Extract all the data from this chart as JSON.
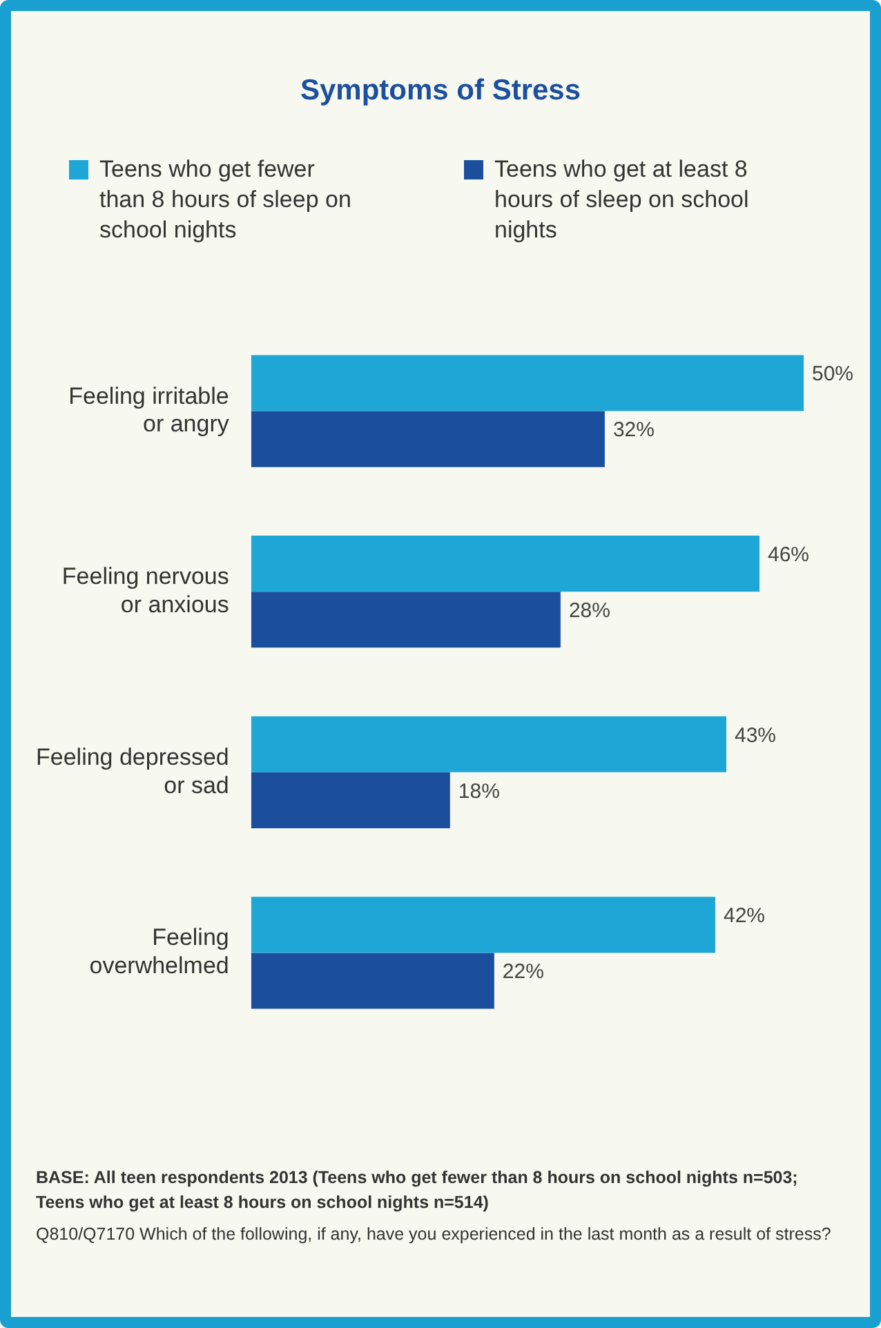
{
  "chart_data": {
    "type": "bar",
    "orientation": "horizontal",
    "title": "Symptoms of Stress",
    "categories": [
      "Feeling irritable or angry",
      "Feeling nervous or anxious",
      "Feeling depressed or sad",
      "Feeling overwhelmed"
    ],
    "series": [
      {
        "name": "Teens who get fewer than 8 hours of sleep on school nights",
        "color": "#1ea6d6",
        "values": [
          50,
          46,
          43,
          42
        ],
        "value_labels": [
          "50%",
          "46%",
          "43%",
          "42%"
        ]
      },
      {
        "name": "Teens who get at least 8 hours of sleep on school nights",
        "color": "#1b4f9e",
        "values": [
          32,
          28,
          18,
          22
        ],
        "value_labels": [
          "32%",
          "28%",
          "18%",
          "22%"
        ]
      }
    ],
    "legend": "top",
    "annotations": [
      "BASE: All teen respondents 2013 (Teens who get fewer than 8 hours on school nights n=503; Teens who get at least 8 hours on school nights n=514)",
      "Q810/Q7170 Which of the following, if any, have you experienced in the last month as a result of stress?"
    ]
  }
}
